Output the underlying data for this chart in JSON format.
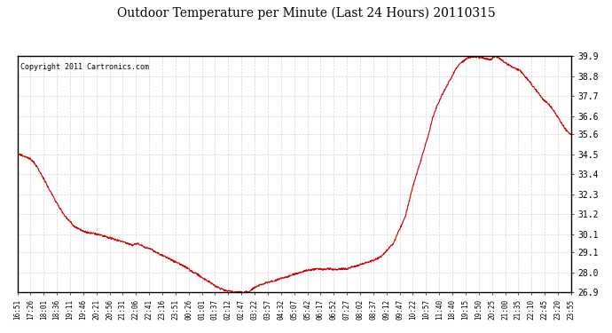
{
  "title": "Outdoor Temperature per Minute (Last 24 Hours) 20110315",
  "copyright": "Copyright 2011 Cartronics.com",
  "line_color": "#cc0000",
  "background_color": "#ffffff",
  "plot_bg_color": "#ffffff",
  "grid_color": "#cccccc",
  "ylim": [
    26.9,
    39.9
  ],
  "yticks": [
    26.9,
    28.0,
    29.1,
    30.1,
    31.2,
    32.3,
    33.4,
    34.5,
    35.6,
    36.6,
    37.7,
    38.8,
    39.9
  ],
  "xtick_labels": [
    "16:51",
    "17:26",
    "18:01",
    "18:36",
    "19:11",
    "19:46",
    "20:21",
    "20:56",
    "21:31",
    "22:06",
    "22:41",
    "23:16",
    "23:51",
    "00:26",
    "01:01",
    "01:37",
    "02:12",
    "02:47",
    "03:22",
    "03:57",
    "04:32",
    "05:07",
    "05:42",
    "06:17",
    "06:52",
    "07:27",
    "08:02",
    "08:37",
    "09:12",
    "09:47",
    "10:22",
    "10:57",
    "11:40",
    "18:40",
    "19:15",
    "19:50",
    "20:25",
    "21:00",
    "21:35",
    "22:10",
    "22:45",
    "23:20",
    "23:55"
  ],
  "segment_data": {
    "start_times_hours": [
      0,
      0.583,
      1.167,
      1.75,
      2.333,
      2.917,
      3.5,
      4.083,
      4.667,
      5.25,
      5.833,
      6.417,
      7.0,
      7.583,
      8.167,
      8.75,
      9.333,
      9.917,
      10.5,
      11.083,
      11.667,
      12.25,
      12.833,
      13.417,
      14.0,
      14.583,
      15.167,
      15.75,
      16.333,
      16.917,
      17.5,
      18.083,
      18.667,
      19.25,
      19.833,
      20.417,
      21.0,
      21.583,
      22.167,
      22.75,
      23.333,
      23.917
    ]
  }
}
